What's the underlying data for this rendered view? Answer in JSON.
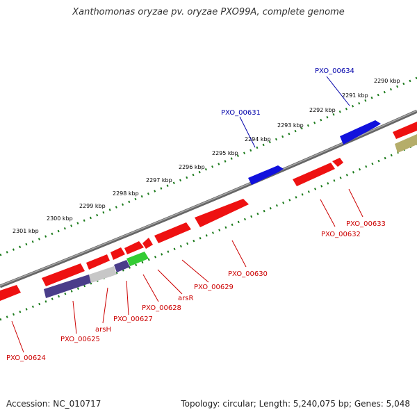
{
  "title": "Xanthomonas oryzae pv. oryzae PXO99A, complete genome",
  "footer": {
    "accession": "Accession: NC_010717",
    "summary": "Topology: circular; Length: 5,240,075 bp; Genes: 5,048"
  },
  "colors": {
    "forward_strand": "#ee1111",
    "reverse_strand": "#1111dd",
    "backbone": "#888888",
    "tick": "#1a7a1a",
    "label_forward": "#cc0000",
    "label_reverse": "#0000aa"
  },
  "ticks": [
    "2290 kbp",
    "2291 kbp",
    "2292 kbp",
    "2293 kbp",
    "2294 kbp",
    "2295 kbp",
    "2296 kbp",
    "2297 kbp",
    "2298 kbp",
    "2299 kbp",
    "2300 kbp",
    "2301 kbp"
  ],
  "genes": {
    "reverse": [
      "PXO_00634",
      "PXO_00631"
    ],
    "forward": [
      "PXO_00633",
      "PXO_00632",
      "PXO_00630",
      "PXO_00629",
      "arsR",
      "PXO_00628",
      "PXO_00627",
      "arsH",
      "PXO_00625",
      "PXO_00624"
    ]
  }
}
